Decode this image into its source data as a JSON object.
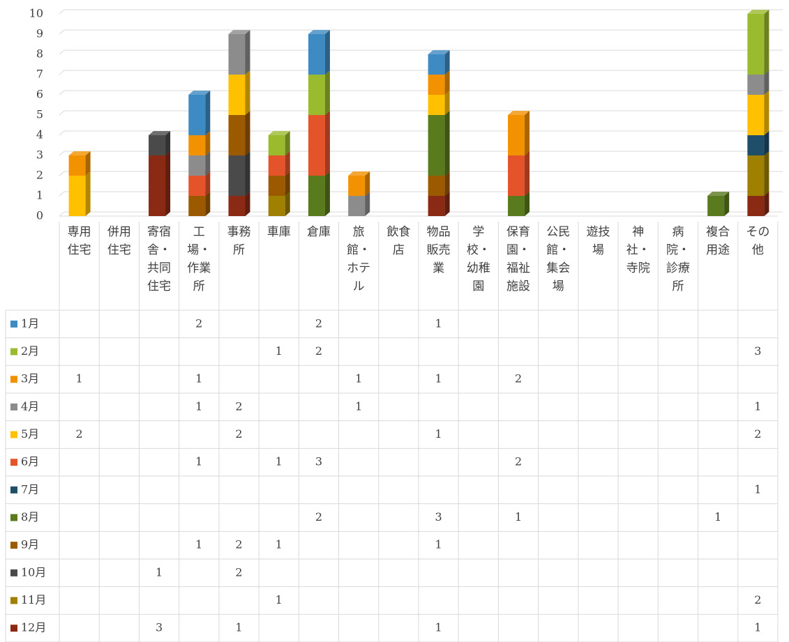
{
  "chart_data": {
    "type": "bar",
    "stacked": true,
    "categories": [
      "専用住宅",
      "併用住宅",
      "寄宿舎・共同住宅",
      "工場・作業所",
      "事務所",
      "車庫",
      "倉庫",
      "旅館・ホテル",
      "飲食店",
      "物品販売業",
      "学校・幼稚園",
      "保育園・福祉施設",
      "公民館・集会場",
      "遊技場",
      "神社・寺院",
      "病院・診療所",
      "複合用途",
      "その他"
    ],
    "ylim": [
      0,
      10
    ],
    "yticks": [
      0,
      1,
      2,
      3,
      4,
      5,
      6,
      7,
      8,
      9,
      10
    ],
    "grid": true,
    "series": [
      {
        "name": "1月",
        "color": "#3e8ac2",
        "values": [
          null,
          null,
          null,
          2,
          null,
          null,
          2,
          null,
          null,
          1,
          null,
          null,
          null,
          null,
          null,
          null,
          null,
          null
        ]
      },
      {
        "name": "2月",
        "color": "#9bbb2e",
        "values": [
          null,
          null,
          null,
          null,
          null,
          1,
          2,
          null,
          null,
          null,
          null,
          null,
          null,
          null,
          null,
          null,
          null,
          3
        ]
      },
      {
        "name": "3月",
        "color": "#f39200",
        "values": [
          1,
          null,
          null,
          1,
          null,
          null,
          null,
          1,
          null,
          1,
          null,
          2,
          null,
          null,
          null,
          null,
          null,
          null
        ]
      },
      {
        "name": "4月",
        "color": "#8c8c8c",
        "values": [
          null,
          null,
          null,
          1,
          2,
          null,
          null,
          1,
          null,
          null,
          null,
          null,
          null,
          null,
          null,
          null,
          null,
          1
        ]
      },
      {
        "name": "5月",
        "color": "#ffc000",
        "values": [
          2,
          null,
          null,
          null,
          2,
          null,
          null,
          null,
          null,
          1,
          null,
          null,
          null,
          null,
          null,
          null,
          null,
          2
        ]
      },
      {
        "name": "6月",
        "color": "#e5532a",
        "values": [
          null,
          null,
          null,
          1,
          null,
          1,
          3,
          null,
          null,
          null,
          null,
          2,
          null,
          null,
          null,
          null,
          null,
          null
        ]
      },
      {
        "name": "7月",
        "color": "#1f4e6b",
        "values": [
          null,
          null,
          null,
          null,
          null,
          null,
          null,
          null,
          null,
          null,
          null,
          null,
          null,
          null,
          null,
          null,
          null,
          1
        ]
      },
      {
        "name": "8月",
        "color": "#5a7a1e",
        "values": [
          null,
          null,
          null,
          null,
          null,
          null,
          2,
          null,
          null,
          3,
          null,
          1,
          null,
          null,
          null,
          null,
          1,
          null
        ]
      },
      {
        "name": "9月",
        "color": "#9c5a00",
        "values": [
          null,
          null,
          null,
          1,
          2,
          1,
          null,
          null,
          null,
          1,
          null,
          null,
          null,
          null,
          null,
          null,
          null,
          null
        ]
      },
      {
        "name": "10月",
        "color": "#4a4a4a",
        "values": [
          null,
          null,
          1,
          null,
          2,
          null,
          null,
          null,
          null,
          null,
          null,
          null,
          null,
          null,
          null,
          null,
          null,
          null
        ]
      },
      {
        "name": "11月",
        "color": "#a08000",
        "values": [
          null,
          null,
          null,
          null,
          null,
          1,
          null,
          null,
          null,
          null,
          null,
          null,
          null,
          null,
          null,
          null,
          null,
          2
        ]
      },
      {
        "name": "12月",
        "color": "#8b2a14",
        "values": [
          null,
          null,
          3,
          null,
          1,
          null,
          null,
          null,
          null,
          1,
          null,
          null,
          null,
          null,
          null,
          null,
          null,
          1
        ]
      }
    ]
  }
}
